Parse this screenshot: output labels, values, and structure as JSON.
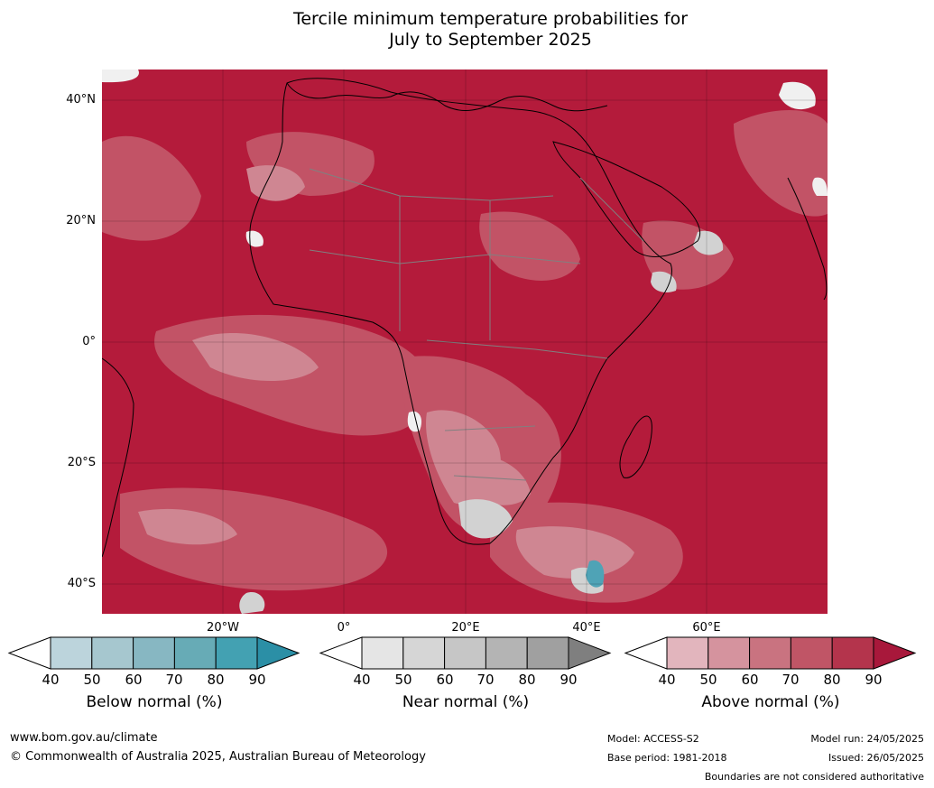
{
  "title": {
    "line1": "Tercile minimum temperature probabilities for",
    "line2": "July to September 2025"
  },
  "map": {
    "region": "Africa and surrounding oceans",
    "dominant_category": "above normal, 90% or more",
    "lat_labels": [
      "40°N",
      "20°N",
      "0°",
      "20°S",
      "40°S"
    ],
    "lon_labels": [
      "20°W",
      "0°",
      "20°E",
      "40°E",
      "60°E"
    ],
    "boundary_note": "Boundaries are not considered authoritative"
  },
  "colorbars": [
    {
      "id": "below",
      "title": "Below normal (%)",
      "ticks": [
        "40",
        "50",
        "60",
        "70",
        "80",
        "90"
      ],
      "colors": [
        "#ffffff",
        "#bcd4dc",
        "#a6c7cf",
        "#87b7c2",
        "#67abb6",
        "#43a1b2",
        "#2b8fa6"
      ]
    },
    {
      "id": "near",
      "title": "Near normal (%)",
      "ticks": [
        "40",
        "50",
        "60",
        "70",
        "80",
        "90"
      ],
      "colors": [
        "#ffffff",
        "#e5e5e5",
        "#d6d6d6",
        "#c6c6c6",
        "#b4b4b4",
        "#a0a0a0",
        "#7f7f7f"
      ]
    },
    {
      "id": "above",
      "title": "Above normal (%)",
      "ticks": [
        "40",
        "50",
        "60",
        "70",
        "80",
        "90"
      ],
      "colors": [
        "#ffffff",
        "#e2b5bd",
        "#d5939e",
        "#c97380",
        "#c05566",
        "#b4344c",
        "#a8183b"
      ]
    }
  ],
  "footer": {
    "website": "www.bom.gov.au/climate",
    "copyright": "© Commonwealth of Australia 2025, Australian Bureau of Meteorology",
    "model": "Model: ACCESS-S2",
    "base_period": "Base period: 1981-2018",
    "model_run": "Model run: 24/05/2025",
    "issued": "Issued: 26/05/2025",
    "boundaries": "Boundaries are not considered authoritative"
  }
}
